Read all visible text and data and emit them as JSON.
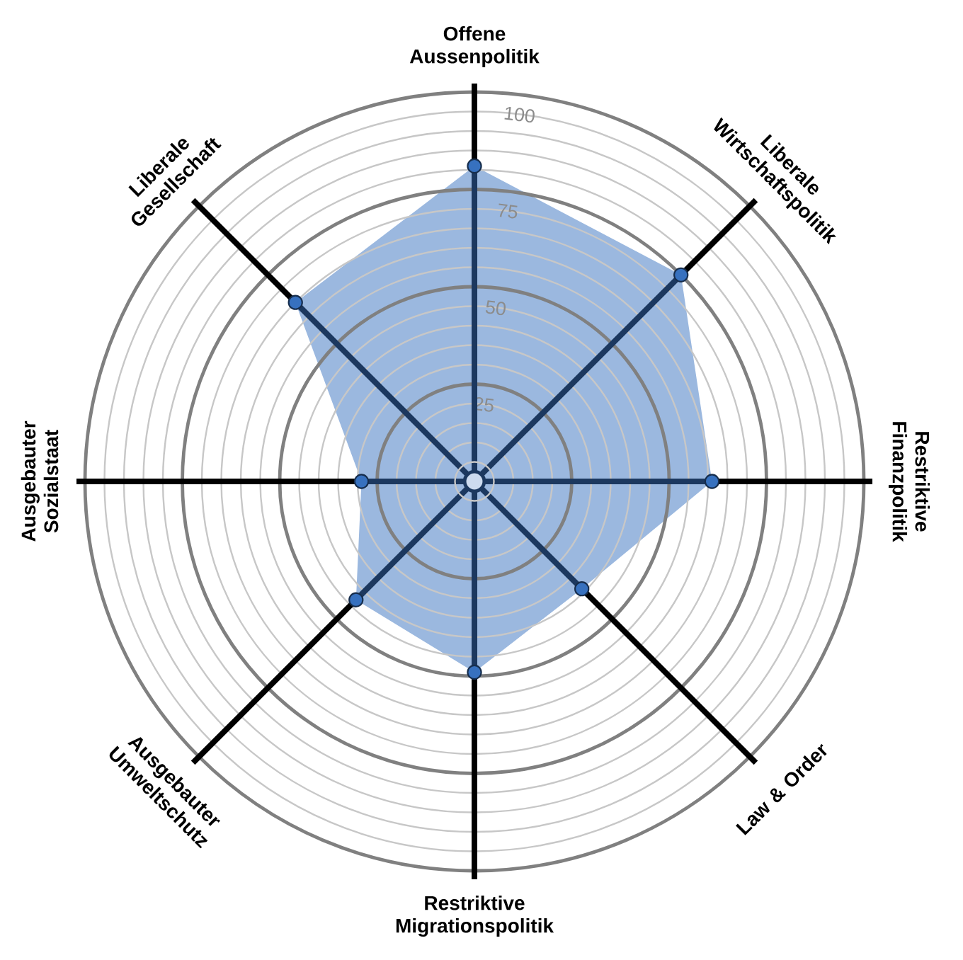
{
  "chart_data": {
    "type": "radar",
    "categories": [
      "Offene Aussenpolitik",
      "Liberale Wirtschaftspolitik",
      "Restriktive Finanzpolitik",
      "Law & Order",
      "Restriktive Migrationspolitik",
      "Ausgebauter Umweltschutz",
      "Ausgebauter Sozialstaat",
      "Liberale Gesellschaft"
    ],
    "series": [
      {
        "color": "#9bb8df",
        "values": [
          81,
          75,
          61,
          39,
          49,
          43,
          29,
          65
        ]
      }
    ],
    "ylim": [
      0,
      100
    ],
    "yticks": [
      25,
      50,
      75,
      100
    ],
    "grid": true,
    "marker": "circle"
  }
}
